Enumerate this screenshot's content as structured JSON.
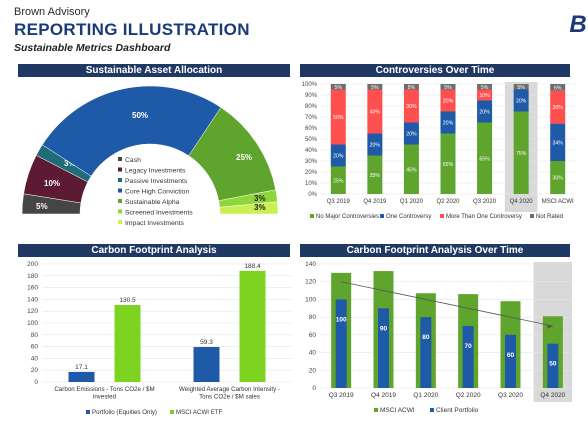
{
  "header": {
    "company": "Brown Advisory",
    "title": "REPORTING ILLUSTRATION",
    "subtitle": "Sustainable Metrics Dashboard",
    "logo_letter": "B"
  },
  "colors": {
    "navy": "#1f3864",
    "maroon": "#5c1a33",
    "blue": "#1f5aa8",
    "teal": "#1e6b79",
    "green": "#5fa42d",
    "bright_green": "#8fd63a",
    "lime": "#c8f050",
    "gray": "#6d6d6d",
    "red": "#ff5050"
  },
  "chart_data": [
    {
      "id": "asset_allocation",
      "type": "pie",
      "title": "Sustainable Asset Allocation",
      "half_donut": true,
      "slices": [
        {
          "name": "Cash",
          "value": 5,
          "label": "5%",
          "color": "#454545"
        },
        {
          "name": "Legacy Investments",
          "value": 10,
          "label": "10%",
          "color": "#5c1a33"
        },
        {
          "name": "Passive Investments",
          "value": 3,
          "label": "3%",
          "color": "#1e6b79"
        },
        {
          "name": "Core High Conviction",
          "value": 50,
          "label": "50%",
          "color": "#1f5aa8"
        },
        {
          "name": "Sustainable Alpha",
          "value": 25,
          "label": "25%",
          "color": "#5fa42d"
        },
        {
          "name": "Screened Investments",
          "value": 3,
          "label": "3%",
          "color": "#8fd63a"
        },
        {
          "name": "Impact Investments",
          "value": 3,
          "label": "3%",
          "color": "#c8f050"
        }
      ],
      "legend": [
        "Cash",
        "Legacy Investments",
        "Passive Investments",
        "Core High Conviction",
        "Sustainable Alpha",
        "Screened Investments",
        "Impact Investments"
      ]
    },
    {
      "id": "controversies",
      "type": "bar",
      "stacked": true,
      "title": "Controversies Over Time",
      "categories": [
        "Q3 2019",
        "Q4 2019",
        "Q1 2020",
        "Q2 2020",
        "Q3 2020",
        "Q4 2020",
        "MSCI ACWI"
      ],
      "highlight": "Q4 2020",
      "ylim": [
        0,
        100
      ],
      "yticks": [
        "0%",
        "10%",
        "20%",
        "30%",
        "40%",
        "50%",
        "60%",
        "70%",
        "80%",
        "90%",
        "100%"
      ],
      "series": [
        {
          "name": "No Major Controversies",
          "color": "#5fa42d",
          "values": [
            25,
            35,
            45,
            55,
            65,
            75,
            30
          ],
          "labels": [
            "25%",
            "35%",
            "45%",
            "55%",
            "65%",
            "75%",
            "30%"
          ]
        },
        {
          "name": "One Controversy",
          "color": "#1f5aa8",
          "values": [
            20,
            20,
            20,
            20,
            20,
            20,
            34
          ],
          "labels": [
            "20%",
            "20%",
            "20%",
            "20%",
            "20%",
            "20%",
            "34%"
          ]
        },
        {
          "name": "More Than One Controversy",
          "color": "#ff5050",
          "values": [
            50,
            40,
            30,
            20,
            10,
            0,
            30
          ],
          "labels": [
            "50%",
            "40%",
            "30%",
            "20%",
            "10%",
            "",
            "30%"
          ]
        },
        {
          "name": "Not Rated",
          "color": "#6d6d6d",
          "values": [
            5,
            5,
            5,
            5,
            5,
            5,
            6
          ],
          "labels": [
            "5%",
            "5%",
            "5%",
            "5%",
            "5%",
            "5%",
            "6%"
          ]
        }
      ]
    },
    {
      "id": "carbon_footprint",
      "type": "bar",
      "title": "Carbon Footprint Analysis",
      "categories": [
        "Carbon Emissions - Tons CO2e / $M\ninvested",
        "Weighted Average Carbon Intensity -\nTons CO2e / $M sales"
      ],
      "ylim": [
        0,
        200
      ],
      "yticks": [
        0,
        20,
        40,
        60,
        80,
        100,
        120,
        140,
        160,
        180,
        200
      ],
      "series": [
        {
          "name": "Portfolio (Equities Only)",
          "color": "#1f5aa8",
          "values": [
            17.1,
            59.3
          ],
          "labels": [
            "17.1",
            "59.3"
          ]
        },
        {
          "name": "MSCI ACWI ETF",
          "color": "#7ed321",
          "values": [
            130.5,
            188.4
          ],
          "labels": [
            "130.5",
            "188.4"
          ]
        }
      ]
    },
    {
      "id": "carbon_over_time",
      "type": "bar",
      "title": "Carbon Footprint Analysis Over Time",
      "categories": [
        "Q3 2019",
        "Q4 2019",
        "Q1 2020",
        "Q2 2020",
        "Q3 2020",
        "Q4 2020"
      ],
      "highlight": "Q4 2020",
      "ylim": [
        0,
        140
      ],
      "yticks": [
        0,
        20,
        40,
        60,
        80,
        100,
        120,
        140
      ],
      "series": [
        {
          "name": "MSCI ACWI",
          "color": "#5fa42d",
          "values": [
            130,
            132,
            107,
            106,
            98,
            81
          ]
        },
        {
          "name": "Client Portfolio",
          "color": "#1f5aa8",
          "values": [
            100,
            90,
            80,
            70,
            60,
            50
          ],
          "labels": [
            "100",
            "90",
            "80",
            "70",
            "60",
            "50"
          ]
        }
      ],
      "trendline": true
    }
  ]
}
